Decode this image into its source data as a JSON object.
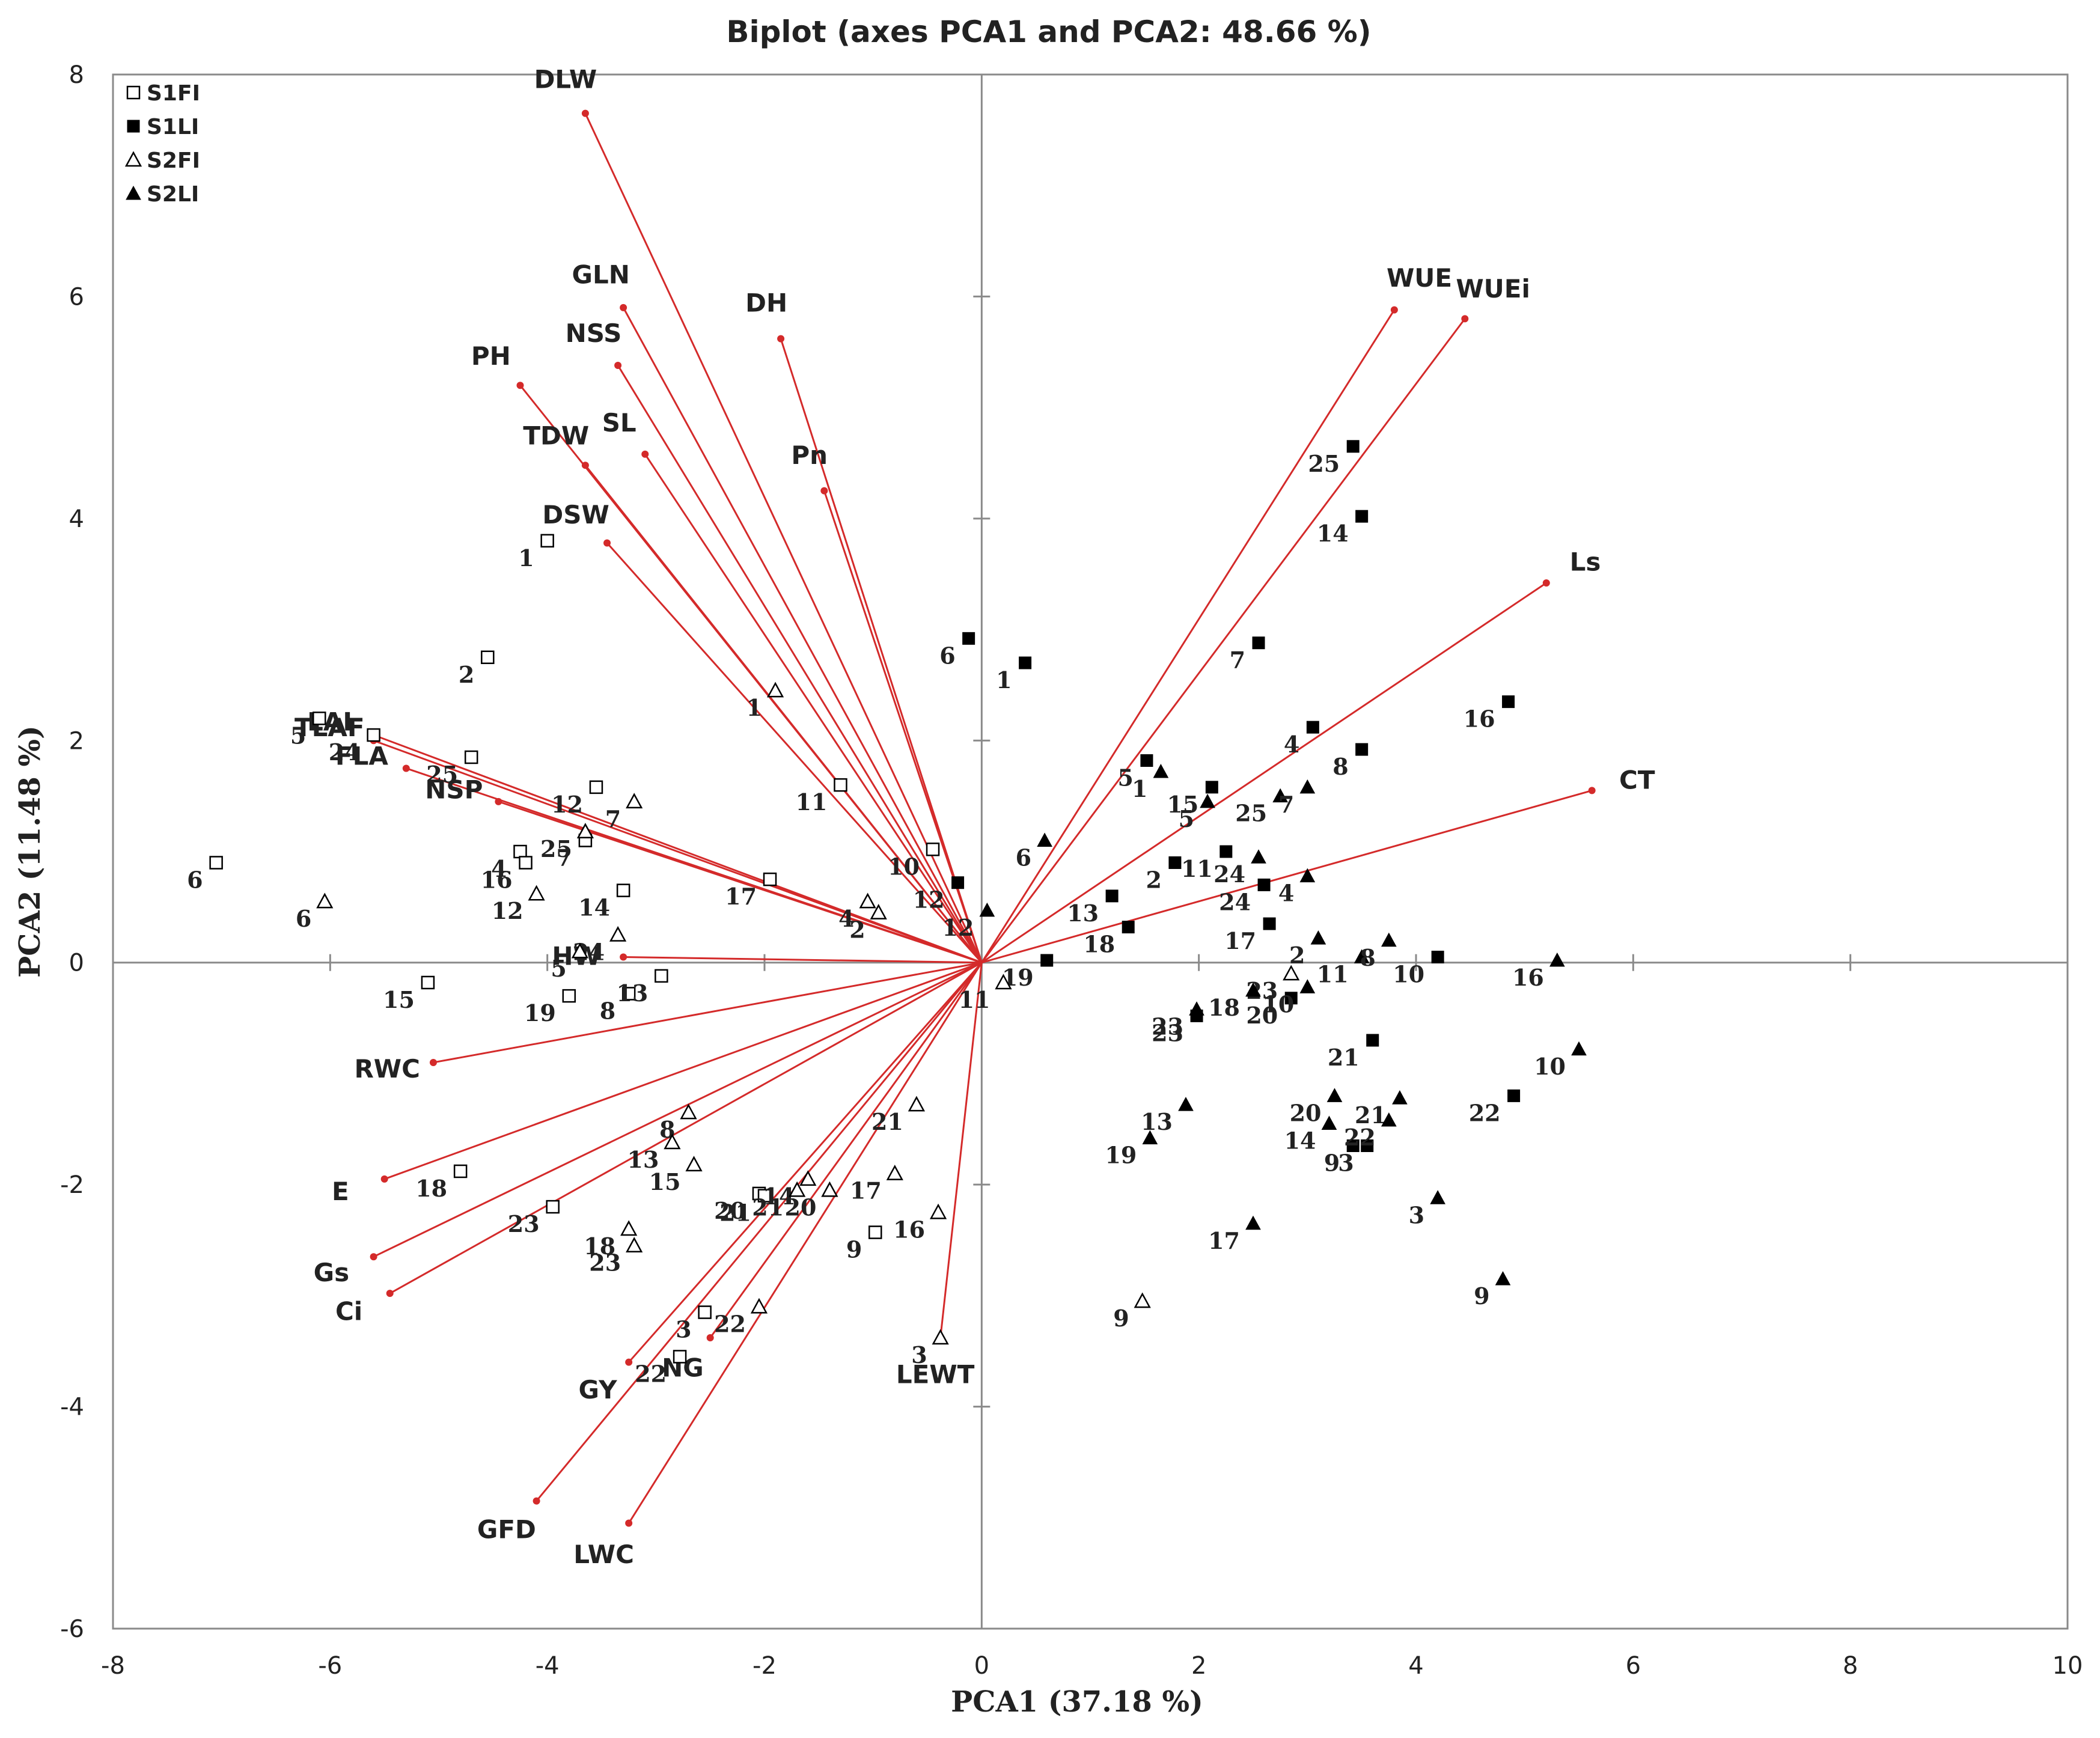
{
  "chart_data": {
    "type": "scatter",
    "subtype": "PCA biplot",
    "title": "Biplot (axes PCA1 and PCA2: 48.66 %)",
    "xlabel": "PCA1 (37.18 %)",
    "ylabel": "PCA2 (11.48 %)",
    "xlim": [
      -8,
      10
    ],
    "ylim": [
      -6,
      8
    ],
    "xticks": [
      -8,
      -6,
      -4,
      -2,
      0,
      2,
      4,
      6,
      8,
      10
    ],
    "yticks": [
      -6,
      -4,
      -2,
      0,
      2,
      4,
      6,
      8
    ],
    "legend_position": "top-left",
    "colors": {
      "vector": "#d42a2a",
      "marker": "#000000"
    },
    "vectors": [
      {
        "label": "DLW",
        "x": -3.65,
        "y": 7.65
      },
      {
        "label": "GLN",
        "x": -3.3,
        "y": 5.9
      },
      {
        "label": "NSS",
        "x": -3.35,
        "y": 5.38
      },
      {
        "label": "PH",
        "x": -4.25,
        "y": 5.2
      },
      {
        "label": "DH",
        "x": -1.85,
        "y": 5.62
      },
      {
        "label": "SL",
        "x": -3.1,
        "y": 4.58
      },
      {
        "label": "TDW",
        "x": -3.65,
        "y": 4.48
      },
      {
        "label": "Pn",
        "x": -1.45,
        "y": 4.25
      },
      {
        "label": "DSW",
        "x": -3.45,
        "y": 3.78
      },
      {
        "label": "LAI",
        "x": -5.6,
        "y": 2.05
      },
      {
        "label": "TLAF",
        "x": -5.6,
        "y": 2.0
      },
      {
        "label": "FLA",
        "x": -5.3,
        "y": 1.75
      },
      {
        "label": "NSP",
        "x": -4.45,
        "y": 1.45
      },
      {
        "label": "HW",
        "x": -3.3,
        "y": 0.05
      },
      {
        "label": "RWC",
        "x": -5.05,
        "y": -0.9
      },
      {
        "label": "E",
        "x": -5.5,
        "y": -1.95
      },
      {
        "label": "Gs",
        "x": -5.6,
        "y": -2.65
      },
      {
        "label": "Ci",
        "x": -5.45,
        "y": -2.98
      },
      {
        "label": "GY",
        "x": -3.25,
        "y": -3.6
      },
      {
        "label": "NG",
        "x": -2.5,
        "y": -3.38
      },
      {
        "label": "GFD",
        "x": -4.1,
        "y": -4.85
      },
      {
        "label": "LWC",
        "x": -3.25,
        "y": -5.05
      },
      {
        "label": "LEWT",
        "x": -0.38,
        "y": -3.38
      },
      {
        "label": "WUE",
        "x": 3.8,
        "y": 5.88
      },
      {
        "label": "WUEi",
        "x": 4.45,
        "y": 5.8
      },
      {
        "label": "Ls",
        "x": 5.2,
        "y": 3.42
      },
      {
        "label": "CT",
        "x": 5.62,
        "y": 1.55
      }
    ],
    "series": [
      {
        "name": "S1FI",
        "marker": "open-square",
        "points": [
          {
            "label": "1",
            "x": -4.0,
            "y": 3.8
          },
          {
            "label": "2",
            "x": -4.55,
            "y": 2.75
          },
          {
            "label": "5",
            "x": -6.1,
            "y": 2.2
          },
          {
            "label": "24",
            "x": -5.6,
            "y": 2.05
          },
          {
            "label": "25",
            "x": -4.7,
            "y": 1.85
          },
          {
            "label": "12",
            "x": -3.55,
            "y": 1.58
          },
          {
            "label": "7",
            "x": -3.65,
            "y": 1.1
          },
          {
            "label": "4",
            "x": -4.25,
            "y": 1.0
          },
          {
            "label": "16",
            "x": -4.2,
            "y": 0.9
          },
          {
            "label": "14",
            "x": -3.3,
            "y": 0.65
          },
          {
            "label": "6",
            "x": -7.05,
            "y": 0.9
          },
          {
            "label": "11",
            "x": -1.3,
            "y": 1.6
          },
          {
            "label": "17",
            "x": -1.95,
            "y": 0.75
          },
          {
            "label": "10",
            "x": -0.45,
            "y": 1.02
          },
          {
            "label": "15",
            "x": -5.1,
            "y": -0.18
          },
          {
            "label": "19",
            "x": -3.8,
            "y": -0.3
          },
          {
            "label": "8",
            "x": -3.25,
            "y": -0.28
          },
          {
            "label": "13",
            "x": -2.95,
            "y": -0.12
          },
          {
            "label": "18",
            "x": -4.8,
            "y": -1.88
          },
          {
            "label": "23",
            "x": -3.95,
            "y": -2.2
          },
          {
            "label": "20",
            "x": -2.05,
            "y": -2.08
          },
          {
            "label": "21",
            "x": -2.0,
            "y": -2.1
          },
          {
            "label": "9",
            "x": -0.98,
            "y": -2.43
          },
          {
            "label": "3",
            "x": -2.55,
            "y": -3.15
          },
          {
            "label": "22",
            "x": -2.78,
            "y": -3.55
          }
        ]
      },
      {
        "name": "S1LI",
        "marker": "filled-square",
        "points": [
          {
            "label": "6",
            "x": -0.12,
            "y": 2.92
          },
          {
            "label": "1",
            "x": 0.4,
            "y": 2.7
          },
          {
            "label": "12",
            "x": -0.22,
            "y": 0.72
          },
          {
            "label": "19",
            "x": 0.6,
            "y": 0.02
          },
          {
            "label": "25",
            "x": 3.42,
            "y": 4.65
          },
          {
            "label": "14",
            "x": 3.5,
            "y": 4.02
          },
          {
            "label": "7",
            "x": 2.55,
            "y": 2.88
          },
          {
            "label": "4",
            "x": 3.05,
            "y": 2.12
          },
          {
            "label": "8",
            "x": 3.5,
            "y": 1.92
          },
          {
            "label": "16",
            "x": 4.85,
            "y": 2.35
          },
          {
            "label": "5",
            "x": 1.52,
            "y": 1.82
          },
          {
            "label": "15",
            "x": 2.12,
            "y": 1.58
          },
          {
            "label": "2",
            "x": 1.78,
            "y": 0.9
          },
          {
            "label": "11",
            "x": 2.25,
            "y": 1.0
          },
          {
            "label": "13",
            "x": 1.2,
            "y": 0.6
          },
          {
            "label": "18",
            "x": 1.35,
            "y": 0.32
          },
          {
            "label": "24",
            "x": 2.6,
            "y": 0.7
          },
          {
            "label": "17",
            "x": 2.65,
            "y": 0.35
          },
          {
            "label": "10",
            "x": 4.2,
            "y": 0.05
          },
          {
            "label": "23",
            "x": 1.98,
            "y": -0.48
          },
          {
            "label": "20",
            "x": 2.85,
            "y": -0.32
          },
          {
            "label": "21",
            "x": 3.6,
            "y": -0.7
          },
          {
            "label": "22",
            "x": 4.9,
            "y": -1.2
          },
          {
            "label": "9",
            "x": 3.42,
            "y": -1.65
          },
          {
            "label": "3",
            "x": 3.55,
            "y": -1.65
          }
        ]
      },
      {
        "name": "S2FI",
        "marker": "open-triangle",
        "points": [
          {
            "label": "1",
            "x": -1.9,
            "y": 2.45
          },
          {
            "label": "7",
            "x": -3.2,
            "y": 1.45
          },
          {
            "label": "25",
            "x": -3.65,
            "y": 1.18
          },
          {
            "label": "12",
            "x": -4.1,
            "y": 0.62
          },
          {
            "label": "24",
            "x": -3.35,
            "y": 0.25
          },
          {
            "label": "5",
            "x": -3.7,
            "y": 0.1
          },
          {
            "label": "6",
            "x": -6.05,
            "y": 0.55
          },
          {
            "label": "4",
            "x": -1.05,
            "y": 0.55
          },
          {
            "label": "2",
            "x": -0.95,
            "y": 0.45
          },
          {
            "label": "11",
            "x": 0.2,
            "y": -0.18
          },
          {
            "label": "8",
            "x": -2.7,
            "y": -1.35
          },
          {
            "label": "13",
            "x": -2.85,
            "y": -1.62
          },
          {
            "label": "15",
            "x": -2.65,
            "y": -1.82
          },
          {
            "label": "14",
            "x": -1.6,
            "y": -1.95
          },
          {
            "label": "20",
            "x": -1.4,
            "y": -2.05
          },
          {
            "label": "21",
            "x": -1.7,
            "y": -2.05
          },
          {
            "label": "21",
            "x": -0.6,
            "y": -1.28
          },
          {
            "label": "17",
            "x": -0.8,
            "y": -1.9
          },
          {
            "label": "16",
            "x": -0.4,
            "y": -2.25
          },
          {
            "label": "18",
            "x": -3.25,
            "y": -2.4
          },
          {
            "label": "23",
            "x": -3.2,
            "y": -2.55
          },
          {
            "label": "22",
            "x": -2.05,
            "y": -3.1
          },
          {
            "label": "3",
            "x": -0.38,
            "y": -3.38
          },
          {
            "label": "23",
            "x": 2.85,
            "y": -0.1
          },
          {
            "label": "9",
            "x": 1.48,
            "y": -3.05
          }
        ]
      },
      {
        "name": "S2LI",
        "marker": "filled-triangle",
        "points": [
          {
            "label": "6",
            "x": 0.58,
            "y": 1.1
          },
          {
            "label": "12",
            "x": 0.05,
            "y": 0.47
          },
          {
            "label": "1",
            "x": 1.65,
            "y": 1.72
          },
          {
            "label": "5",
            "x": 2.08,
            "y": 1.45
          },
          {
            "label": "25",
            "x": 2.75,
            "y": 1.5
          },
          {
            "label": "7",
            "x": 3.0,
            "y": 1.58
          },
          {
            "label": "24",
            "x": 2.55,
            "y": 0.95
          },
          {
            "label": "4",
            "x": 3.0,
            "y": 0.78
          },
          {
            "label": "2",
            "x": 3.1,
            "y": 0.22
          },
          {
            "label": "11",
            "x": 3.5,
            "y": 0.05
          },
          {
            "label": "8",
            "x": 3.75,
            "y": 0.2
          },
          {
            "label": "16",
            "x": 5.3,
            "y": 0.02
          },
          {
            "label": "23",
            "x": 1.98,
            "y": -0.42
          },
          {
            "label": "18",
            "x": 2.5,
            "y": -0.25
          },
          {
            "label": "10",
            "x": 3.0,
            "y": -0.22
          },
          {
            "label": "20",
            "x": 3.25,
            "y": -1.2
          },
          {
            "label": "21",
            "x": 3.85,
            "y": -1.22
          },
          {
            "label": "14",
            "x": 3.2,
            "y": -1.45
          },
          {
            "label": "22",
            "x": 3.75,
            "y": -1.42
          },
          {
            "label": "13",
            "x": 1.88,
            "y": -1.28
          },
          {
            "label": "19",
            "x": 1.55,
            "y": -1.58
          },
          {
            "label": "17",
            "x": 2.5,
            "y": -2.35
          },
          {
            "label": "3",
            "x": 4.2,
            "y": -2.12
          },
          {
            "label": "10",
            "x": 5.5,
            "y": -0.78
          },
          {
            "label": "9",
            "x": 4.8,
            "y": -2.85
          }
        ]
      }
    ]
  }
}
